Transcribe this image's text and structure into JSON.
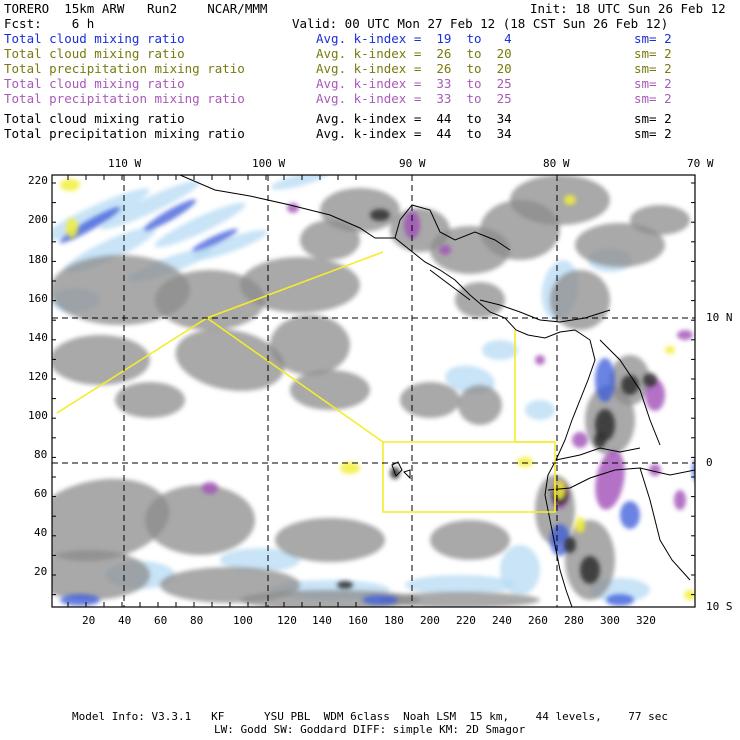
{
  "header": {
    "model": "TORERO  15km ARW   Run2    NCAR/MMM",
    "init": "Init: 18 UTC Sun 26 Feb 12",
    "fcst": "Fcst:    6 h",
    "valid": "Valid: 00 UTC Mon 27 Feb 12 (18 CST Sun 26 Feb 12)"
  },
  "legend_rows": [
    {
      "field": "Total cloud mixing ratio",
      "kindex": "Avg. k-index =  19  to   4",
      "sm": "sm= 2",
      "color": "#1a2fd6"
    },
    {
      "field": "Total cloud mixing ratio",
      "kindex": "Avg. k-index =  26  to  20",
      "sm": "sm= 2",
      "color": "#7a7a10"
    },
    {
      "field": "Total precipitation mixing ratio",
      "kindex": "Avg. k-index =  26  to  20",
      "sm": "sm= 2",
      "color": "#7a7a10"
    },
    {
      "field": "Total cloud mixing ratio",
      "kindex": "Avg. k-index =  33  to  25",
      "sm": "sm= 2",
      "color": "#a85ab8"
    },
    {
      "field": "Total precipitation mixing ratio",
      "kindex": "Avg. k-index =  33  to  25",
      "sm": "sm= 2",
      "color": "#a85ab8"
    },
    {
      "field": "Total cloud mixing ratio",
      "kindex": "Avg. k-index =  44  to  34",
      "sm": "sm= 2",
      "color": "#000000"
    },
    {
      "field": "Total precipitation mixing ratio",
      "kindex": "Avg. k-index =  44  to  34",
      "sm": "sm= 2",
      "color": "#000000"
    }
  ],
  "map": {
    "lon_labels_top": [
      "110 W",
      "100 W",
      "90 W",
      "80 W",
      "70 W"
    ],
    "lat_labels_right": [
      "10 N",
      "0",
      "10 S"
    ],
    "y_grid_labels": [
      "220",
      "200",
      "180",
      "160",
      "140",
      "120",
      "100",
      "80",
      "60",
      "40",
      "20"
    ],
    "x_grid_labels": [
      "20",
      "40",
      "60",
      "80",
      "100",
      "120",
      "140",
      "160",
      "180",
      "200",
      "220",
      "240",
      "260",
      "280",
      "300",
      "320"
    ],
    "colors": {
      "cloud_gray": "#8c8c8c",
      "cloud_dark": "#2f2f2f",
      "light_blue": "#aad4f2",
      "blue": "#3a5ad8",
      "purple": "#a050b8",
      "yellow": "#f2ee3a",
      "coast": "#000000",
      "grid": "#000000"
    }
  },
  "footer": {
    "line1": "Model Info: V3.3.1   KF      YSU PBL  WDM 6class  Noah LSM  15 km,    44 levels,    77 sec",
    "line2": "LW: Godd SW: Goddard DIFF: simple KM: 2D Smagor"
  }
}
